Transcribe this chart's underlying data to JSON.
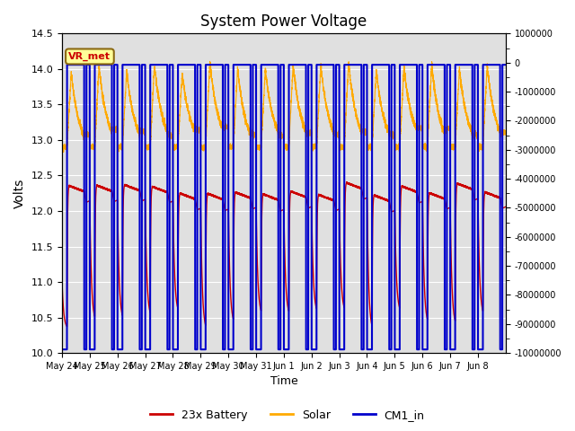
{
  "title": "System Power Voltage",
  "xlabel": "Time",
  "ylabel": "Volts",
  "ylim_left": [
    10.0,
    14.5
  ],
  "ylim_right": [
    -10000000,
    1000000
  ],
  "yticks_right": [
    1000000,
    0,
    -1000000,
    -2000000,
    -3000000,
    -4000000,
    -5000000,
    -6000000,
    -7000000,
    -8000000,
    -9000000,
    -10000000
  ],
  "background_color": "#ffffff",
  "plot_bg_color": "#e0e0e0",
  "grid_color": "#ffffff",
  "annotation_text": "VR_met",
  "annotation_box_color": "#ffff99",
  "annotation_box_edge": "#8b6914",
  "legend_entries": [
    "23x Battery",
    "Solar",
    "CM1_in"
  ],
  "legend_colors": [
    "#cc0000",
    "#ffaa00",
    "#0000cc"
  ],
  "num_days": 16,
  "day_labels": [
    "May 24",
    "May 25",
    "May 26",
    "May 27",
    "May 28",
    "May 29",
    "May 30",
    "May 31",
    "Jun 1",
    "Jun 2",
    "Jun 3",
    "Jun 4",
    "Jun 5",
    "Jun 6",
    "Jun 7",
    "Jun 8"
  ],
  "cm1_high": 14.06,
  "cm1_low": 10.05
}
